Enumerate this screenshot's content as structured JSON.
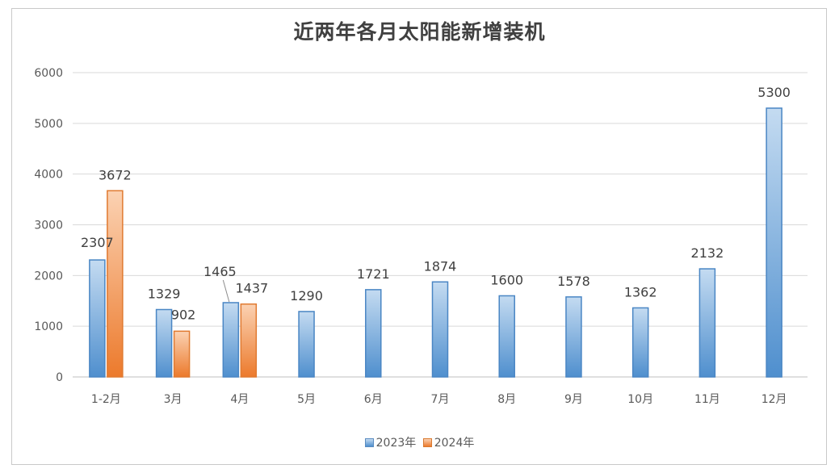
{
  "chart_data": {
    "type": "bar",
    "title": "近两年各月太阳能新增装机",
    "categories": [
      "1-2月",
      "3月",
      "4月",
      "5月",
      "6月",
      "7月",
      "8月",
      "9月",
      "10月",
      "11月",
      "12月"
    ],
    "series": [
      {
        "name": "2023年",
        "color": "#5b9bd5",
        "values": [
          2307,
          1329,
          1465,
          1290,
          1721,
          1874,
          1600,
          1578,
          1362,
          2132,
          5300
        ],
        "labels": [
          "2307",
          "1329",
          "1465",
          "1290",
          "1721",
          "1874",
          "1600",
          "1578",
          "1362",
          "2132",
          "5300"
        ]
      },
      {
        "name": "2024年",
        "color": "#ed7d31",
        "values": [
          3672,
          902,
          1437,
          null,
          null,
          null,
          null,
          null,
          null,
          null,
          null
        ],
        "labels": [
          "3672",
          "902",
          "1437",
          null,
          null,
          null,
          null,
          null,
          null,
          null,
          null
        ]
      }
    ],
    "yticks": [
      "0",
      "1000",
      "2000",
      "3000",
      "4000",
      "5000",
      "6000"
    ],
    "ylim": [
      0,
      6000
    ],
    "grid": true,
    "legend": "bottom-center"
  }
}
